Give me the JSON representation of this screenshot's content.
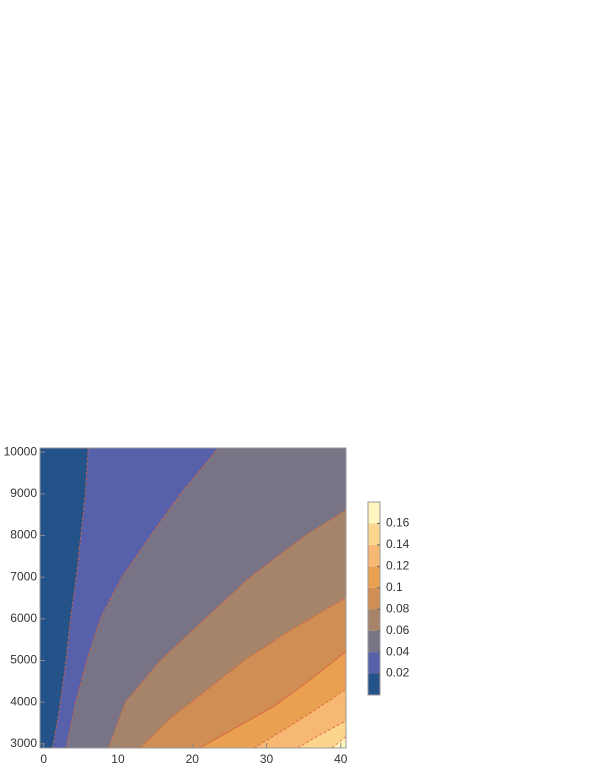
{
  "chart_data": {
    "type": "contour",
    "xlim": [
      -0.5,
      40.7
    ],
    "ylim": [
      2900,
      10100
    ],
    "xticks": [
      0,
      10,
      20,
      30,
      40
    ],
    "yticks": [
      3000,
      4000,
      5000,
      6000,
      7000,
      8000,
      9000,
      10000
    ],
    "levels": [
      0,
      0.02,
      0.04,
      0.06,
      0.08,
      0.1,
      0.12,
      0.14,
      0.16,
      0.18
    ],
    "colors": [
      "#24538a",
      "#5660ab",
      "#787485",
      "#a6846a",
      "#d08e54",
      "#e9a050",
      "#f6b873",
      "#fbd58e",
      "#fff5c0"
    ],
    "colorbar_ticks": [
      0.02,
      0.04,
      0.06,
      0.08,
      0.1,
      0.12,
      0.14,
      0.16
    ],
    "contours": [
      {
        "level": 0.02,
        "x": [
          1.2,
          2,
          3,
          3.6,
          4.4,
          5,
          5.6,
          6
        ],
        "y": [
          2900,
          3700,
          5000,
          6000,
          7000,
          8000,
          9000,
          10100
        ]
      },
      {
        "level": 0.04,
        "x": [
          3,
          4.3,
          5.8,
          7.6,
          10.5,
          14.4,
          18.4,
          23.5
        ],
        "y": [
          2900,
          4000,
          5000,
          6000,
          7000,
          8000,
          9000,
          10100
        ]
      },
      {
        "level": 0.06,
        "x": [
          8.7,
          11,
          15.7,
          21.7,
          27.8,
          35.2,
          40.7
        ],
        "y": [
          2900,
          4000,
          5000,
          6000,
          7000,
          8000,
          8610
        ]
      },
      {
        "level": 0.08,
        "x": [
          13,
          17,
          22,
          27,
          33,
          40.7
        ],
        "y": [
          2900,
          3600,
          4300,
          5000,
          5700,
          6510
        ]
      },
      {
        "level": 0.1,
        "x": [
          21,
          26,
          31,
          36,
          40.7
        ],
        "y": [
          2900,
          3400,
          3900,
          4550,
          5220
        ]
      },
      {
        "level": 0.12,
        "x": [
          28.3,
          32,
          36,
          40.7
        ],
        "y": [
          2900,
          3300,
          3750,
          4310
        ]
      },
      {
        "level": 0.14,
        "x": [
          34.2,
          37,
          40.7
        ],
        "y": [
          2900,
          3200,
          3550
        ]
      },
      {
        "level": 0.16,
        "x": [
          38.8,
          40.7
        ],
        "y": [
          2900,
          3170
        ]
      }
    ]
  }
}
